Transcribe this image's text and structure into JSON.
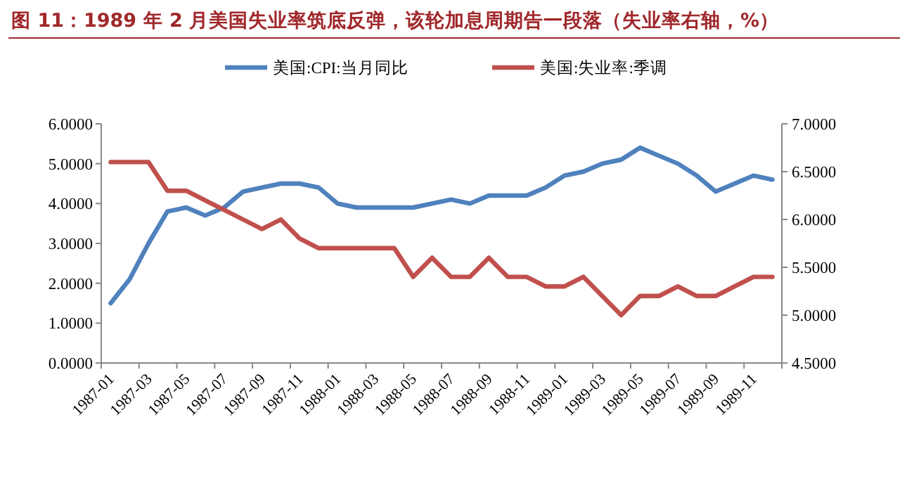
{
  "chart_data": {
    "type": "line",
    "title": "图 11：1989 年 2 月美国失业率筑底反弹，该轮加息周期告一段落（失业率右轴，%）",
    "categories": [
      "1987-01",
      null,
      "1987-03",
      null,
      "1987-05",
      null,
      "1987-07",
      null,
      "1987-09",
      null,
      "1987-11",
      null,
      "1988-01",
      null,
      "1988-03",
      null,
      "1988-05",
      null,
      "1988-07",
      null,
      "1988-09",
      null,
      "1988-11",
      null,
      "1989-01",
      null,
      "1989-03",
      null,
      "1989-05",
      null,
      "1989-07",
      null,
      "1989-09",
      null,
      "1989-11",
      null
    ],
    "series": [
      {
        "name": "美国:CPI:当月同比",
        "color": "#4f81bd",
        "values": [
          1.5,
          2.1,
          3.0,
          3.8,
          3.9,
          3.7,
          3.9,
          4.3,
          4.4,
          4.5,
          4.5,
          4.4,
          4.0,
          3.9,
          3.9,
          3.9,
          3.9,
          4.0,
          4.1,
          4.0,
          4.2,
          4.2,
          4.2,
          4.4,
          4.7,
          4.8,
          5.0,
          5.1,
          5.4,
          5.2,
          5.0,
          4.7,
          4.3,
          4.5,
          4.7,
          4.6
        ]
      },
      {
        "name": "美国:失业率:季调",
        "color": "#c0504d",
        "axis": "y2",
        "values": [
          6.6,
          6.6,
          6.6,
          6.3,
          6.3,
          6.2,
          6.1,
          6.0,
          5.9,
          6.0,
          5.8,
          5.7,
          5.7,
          5.7,
          5.7,
          5.7,
          5.4,
          5.6,
          5.4,
          5.4,
          5.6,
          5.4,
          5.4,
          5.3,
          5.3,
          5.4,
          5.2,
          5.0,
          5.2,
          5.2,
          5.3,
          5.2,
          5.2,
          5.3,
          5.4,
          5.4
        ]
      }
    ],
    "ylim": [
      0,
      6
    ],
    "yticks": [
      {
        "value": 0,
        "label": "0.0000"
      },
      {
        "value": 1,
        "label": "1.0000"
      },
      {
        "value": 2,
        "label": "2.0000"
      },
      {
        "value": 3,
        "label": "3.0000"
      },
      {
        "value": 4,
        "label": "4.0000"
      },
      {
        "value": 5,
        "label": "5.0000"
      },
      {
        "value": 6,
        "label": "6.0000"
      }
    ],
    "y2lim": [
      4.5,
      7
    ],
    "y2ticks": [
      {
        "value": 4.5,
        "label": "4.5000"
      },
      {
        "value": 5,
        "label": "5.0000"
      },
      {
        "value": 5.5,
        "label": "5.5000"
      },
      {
        "value": 6,
        "label": "6.0000"
      },
      {
        "value": 6.5,
        "label": "6.5000"
      },
      {
        "value": 7,
        "label": "7.0000"
      }
    ],
    "legend": "top",
    "grid": false
  }
}
